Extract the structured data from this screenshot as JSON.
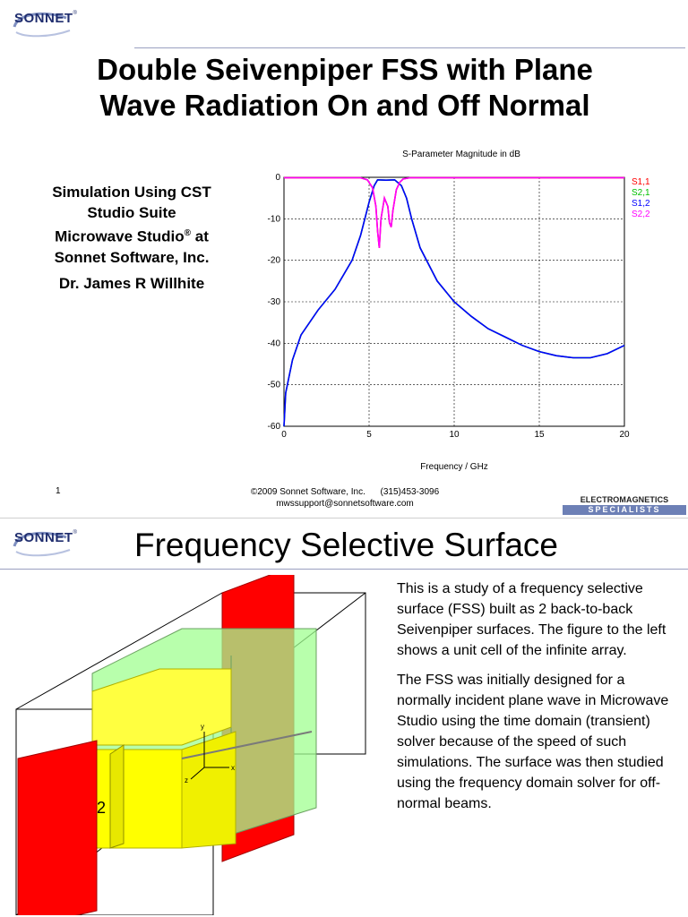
{
  "slide1": {
    "logo": "SONNET",
    "logo_reg": "®",
    "title_line1": "Double Seivenpiper FSS with Plane",
    "title_line2": "Wave Radiation On and Off Normal",
    "subtitle_line1": "Simulation Using CST",
    "subtitle_line2": "Studio Suite",
    "subtitle_line3": "Microwave Studio",
    "subtitle_reg": "®",
    "subtitle_line3_end": " at",
    "subtitle_line4": "Sonnet Software, Inc.",
    "author": "Dr. James R Willhite",
    "page_number": "1",
    "footer_line1": "©2009 Sonnet Software, Inc.      (315)453-3096",
    "footer_line2": "mwssupport@sonnetsoftware.com",
    "em_top": "ELECTROMAGNETICS",
    "em_bottom": "SPECIALISTS"
  },
  "chart_data": {
    "type": "line",
    "title": "S-Parameter Magnitude in dB",
    "xlabel": "Frequency / GHz",
    "ylabel": "",
    "xlim": [
      0,
      20
    ],
    "ylim": [
      -60,
      0
    ],
    "xticks": [
      "0",
      "5",
      "10",
      "15",
      "20"
    ],
    "yticks": [
      "0",
      "-10",
      "-20",
      "-30",
      "-40",
      "-50",
      "-60"
    ],
    "grid": true,
    "legend_position": "right",
    "series": [
      {
        "name": "S1,1",
        "color": "#ff0000",
        "x": [
          0,
          4.5,
          4.9,
          5.2,
          5.4,
          5.5,
          5.6,
          5.7,
          5.9,
          6.1,
          6.2,
          6.3,
          6.4,
          6.6,
          6.8,
          7.0,
          7.4,
          20
        ],
        "y": [
          -0.1,
          -0.1,
          -0.6,
          -2.5,
          -7,
          -13,
          -17,
          -10,
          -5,
          -7,
          -11,
          -12,
          -8,
          -3,
          -1.2,
          -0.4,
          -0.1,
          -0.1
        ]
      },
      {
        "name": "S2,1",
        "color": "#00c000",
        "x": [
          0,
          0.1,
          0.5,
          1,
          2,
          3,
          4,
          4.5,
          5,
          5.3,
          5.5,
          6,
          6.5,
          6.9,
          7.2,
          7.5,
          8,
          9,
          10,
          11,
          12,
          13,
          14,
          15,
          16,
          17,
          18,
          19,
          20
        ],
        "y": [
          -60,
          -52,
          -44,
          -38,
          -32,
          -27,
          -20,
          -14,
          -6,
          -2,
          -0.6,
          -0.7,
          -0.6,
          -2,
          -5,
          -10,
          -17,
          -25,
          -30,
          -33.5,
          -36.5,
          -38.5,
          -40.5,
          -42,
          -43,
          -43.5,
          -43.5,
          -42.5,
          -40.5
        ]
      },
      {
        "name": "S1,2",
        "color": "#0000ff",
        "x": [
          0,
          0.1,
          0.5,
          1,
          2,
          3,
          4,
          4.5,
          5,
          5.3,
          5.5,
          6,
          6.5,
          6.9,
          7.2,
          7.5,
          8,
          9,
          10,
          11,
          12,
          13,
          14,
          15,
          16,
          17,
          18,
          19,
          20
        ],
        "y": [
          -60,
          -52,
          -44,
          -38,
          -32,
          -27,
          -20,
          -14,
          -6,
          -2,
          -0.6,
          -0.7,
          -0.6,
          -2,
          -5,
          -10,
          -17,
          -25,
          -30,
          -33.5,
          -36.5,
          -38.5,
          -40.5,
          -42,
          -43,
          -43.5,
          -43.5,
          -42.5,
          -40.5
        ]
      },
      {
        "name": "S2,2",
        "color": "#ff00ff",
        "x": [
          0,
          4.5,
          4.9,
          5.2,
          5.4,
          5.5,
          5.6,
          5.7,
          5.9,
          6.1,
          6.2,
          6.3,
          6.4,
          6.6,
          6.8,
          7.0,
          7.4,
          20
        ],
        "y": [
          -0.1,
          -0.1,
          -0.6,
          -2.5,
          -7,
          -13,
          -17,
          -10,
          -5,
          -7,
          -11,
          -12,
          -8,
          -3,
          -1.2,
          -0.4,
          -0.1,
          -0.1
        ]
      }
    ]
  },
  "slide2": {
    "logo": "SONNET",
    "logo_reg": "®",
    "title": "Frequency Selective Surface",
    "port_label": "2",
    "axis_y": "y",
    "axis_z": "z",
    "axis_x": "x",
    "paragraph1": "This is a study of a frequency selective surface (FSS) built as 2 back-to-back Seivenpiper surfaces.  The figure to the left shows a unit cell of the infinite array.",
    "paragraph2": "The FSS was initially designed for a normally incident plane wave in Microwave Studio using the time domain (transient) solver because of the speed of such simulations. The surface was then studied using the frequency domain solver for off-normal beams.",
    "colors": {
      "port": "#ff0000",
      "patch": "#ffff00",
      "substrate": "#a0ff90",
      "brand": "#1f2d6e"
    }
  }
}
